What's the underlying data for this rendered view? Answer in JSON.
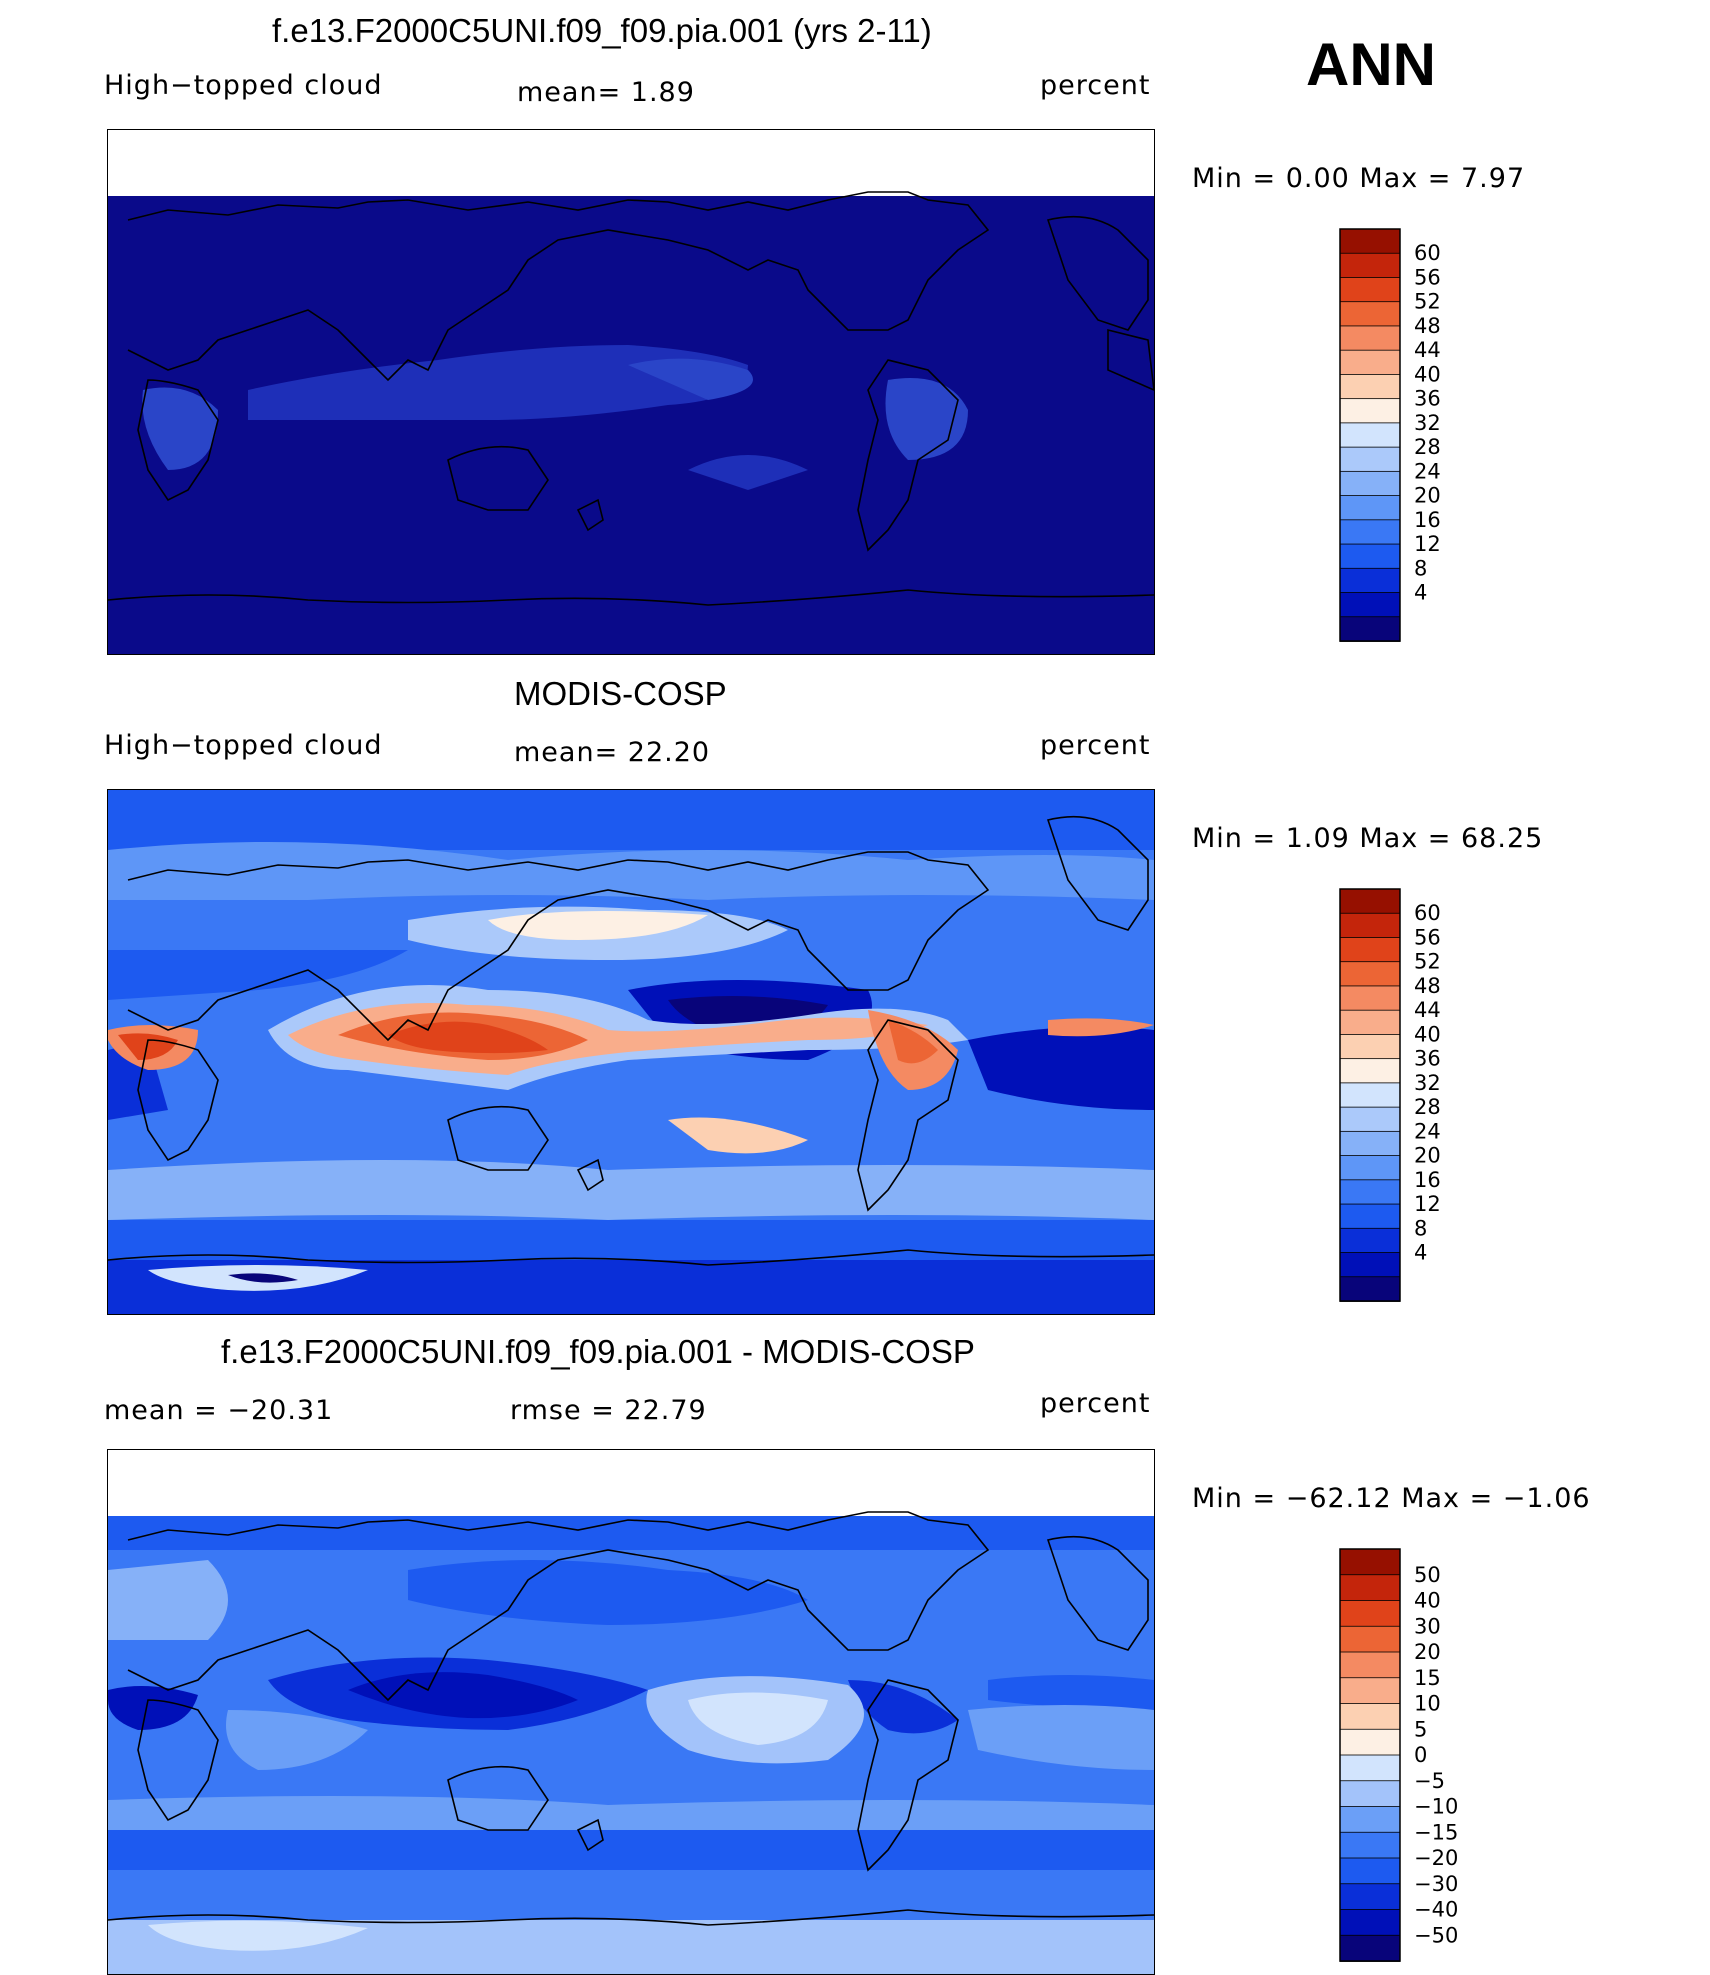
{
  "season": "ANN",
  "colors": {
    "main": [
      "#08047a",
      "#0010b8",
      "#0a2fd8",
      "#1d5af0",
      "#3a78f5",
      "#5e96f7",
      "#86b1f8",
      "#abc9fa",
      "#d2e4fd",
      "#fdf0e4",
      "#fcd0b2",
      "#f9ad8b",
      "#f48a62",
      "#ec6535",
      "#e0431a",
      "#c4250b",
      "#961000"
    ],
    "diff": [
      "#08047a",
      "#0010b8",
      "#0a2fd8",
      "#1d5af0",
      "#3a78f5",
      "#6b9ff7",
      "#a3c3fa",
      "#d2e4fd",
      "#fdf0e4",
      "#fcd0b2",
      "#f9ad8b",
      "#f48a62",
      "#ec6535",
      "#e0431a",
      "#c4250b",
      "#961000"
    ]
  },
  "panels": [
    {
      "title": "f.e13.F2000C5UNI.f09_f09.pia.001 (yrs 2-11)",
      "left_label": "High−topped cloud",
      "mean_text": "mean=    1.89",
      "units": "percent",
      "minmax": "Min  =     0.00  Max  =     7.97",
      "colorbar_labels": [
        "4",
        "8",
        "12",
        "16",
        "20",
        "24",
        "28",
        "32",
        "36",
        "40",
        "44",
        "48",
        "52",
        "56",
        "60"
      ]
    },
    {
      "title": "MODIS-COSP",
      "left_label": "High−topped cloud",
      "mean_text": "mean=   22.20",
      "units": "percent",
      "minmax": "Min  =     1.09  Max  =    68.25",
      "colorbar_labels": [
        "4",
        "8",
        "12",
        "16",
        "20",
        "24",
        "28",
        "32",
        "36",
        "40",
        "44",
        "48",
        "52",
        "56",
        "60"
      ]
    },
    {
      "title": "f.e13.F2000C5UNI.f09_f09.pia.001 - MODIS-COSP",
      "left_label": "mean  =  −20.31",
      "mean_text": "rmse  =    22.79",
      "units": "percent",
      "minmax": "Min  = −62.12  Max  =   −1.06",
      "colorbar_labels": [
        "−50",
        "−40",
        "−30",
        "−20",
        "−15",
        "−10",
        "−5",
        "0",
        "5",
        "10",
        "15",
        "20",
        "30",
        "40",
        "50"
      ]
    }
  ],
  "chart_data": [
    {
      "type": "heatmap",
      "title": "f.e13.F2000C5UNI.f09_f09.pia.001 (yrs 2-11)",
      "variable": "High−topped cloud",
      "units": "percent",
      "mean": 1.89,
      "min": 0.0,
      "max": 7.97,
      "levels": [
        4,
        8,
        12,
        16,
        20,
        24,
        28,
        32,
        36,
        40,
        44,
        48,
        52,
        56,
        60
      ],
      "no_data_above_lat": 60
    },
    {
      "type": "heatmap",
      "title": "MODIS-COSP",
      "variable": "High−topped cloud",
      "units": "percent",
      "mean": 22.2,
      "min": 1.09,
      "max": 68.25,
      "levels": [
        4,
        8,
        12,
        16,
        20,
        24,
        28,
        32,
        36,
        40,
        44,
        48,
        52,
        56,
        60
      ]
    },
    {
      "type": "heatmap",
      "title": "f.e13.F2000C5UNI.f09_f09.pia.001 - MODIS-COSP",
      "units": "percent",
      "mean": -20.31,
      "rmse": 22.79,
      "min": -62.12,
      "max": -1.06,
      "levels": [
        -50,
        -40,
        -30,
        -20,
        -15,
        -10,
        -5,
        0,
        5,
        10,
        15,
        20,
        30,
        40,
        50
      ],
      "no_data_above_lat": 60
    }
  ]
}
